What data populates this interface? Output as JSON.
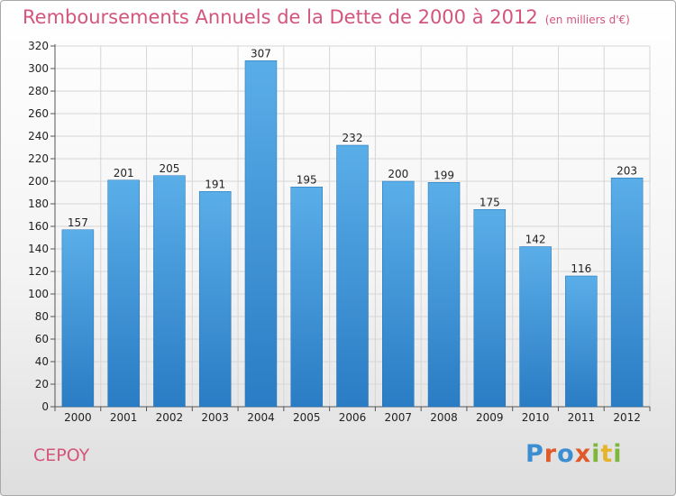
{
  "chart_data": {
    "type": "bar",
    "title": "Remboursements Annuels de la Dette de 2000 à 2012",
    "unit_note": "(en milliers d'€)",
    "categories": [
      "2000",
      "2001",
      "2002",
      "2003",
      "2004",
      "2005",
      "2006",
      "2007",
      "2008",
      "2009",
      "2010",
      "2011",
      "2012"
    ],
    "values": [
      157,
      201,
      205,
      191,
      307,
      195,
      232,
      200,
      199,
      175,
      142,
      116,
      203
    ],
    "ylim": [
      0,
      320
    ],
    "yticks": [
      0,
      20,
      40,
      60,
      80,
      100,
      120,
      140,
      160,
      180,
      200,
      220,
      240,
      260,
      280,
      300,
      320
    ],
    "grid": true,
    "bar_color": "#3a8fd6",
    "title_color": "#d4557c"
  },
  "commune": "CEPOY",
  "logo": {
    "text": "Proxiti"
  }
}
